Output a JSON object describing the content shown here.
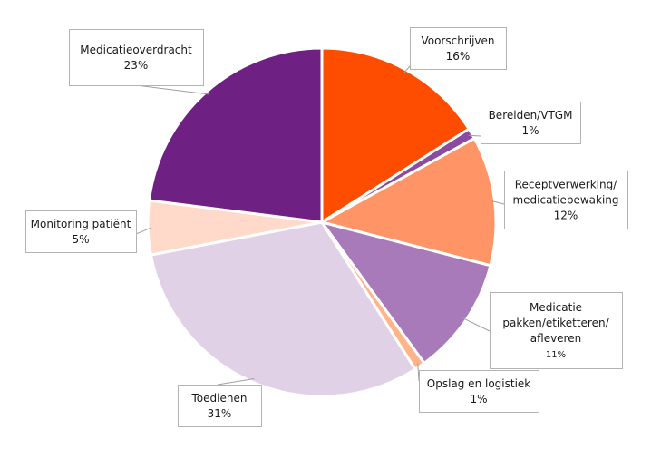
{
  "chart_data": {
    "type": "pie",
    "title": "",
    "start_angle_deg": 0,
    "direction": "clockwise",
    "slices": [
      {
        "label": [
          "Voorschrijven"
        ],
        "percent_label": "16%",
        "value": 16,
        "color": "#FF4D00"
      },
      {
        "label": [
          "Bereiden/VTGM"
        ],
        "percent_label": "1%",
        "value": 1,
        "color": "#8B4BA0"
      },
      {
        "label": [
          "Receptverwerking/",
          "medicatiebewaking"
        ],
        "percent_label": "12%",
        "value": 12,
        "color": "#FF9466"
      },
      {
        "label": [
          "Medicatie",
          "pakken/etiketteren/",
          "afleveren"
        ],
        "percent_label": "11%",
        "value": 11,
        "color": "#A97ABA"
      },
      {
        "label": [
          "Opslag en logistiek"
        ],
        "percent_label": "1%",
        "value": 1,
        "color": "#FFB48A"
      },
      {
        "label": [
          "Toedienen"
        ],
        "percent_label": "31%",
        "value": 31,
        "color": "#E1D1E6"
      },
      {
        "label": [
          "Monitoring patiënt"
        ],
        "percent_label": "5%",
        "value": 5,
        "color": "#FFD9C9"
      },
      {
        "label": [
          "Medicatieoverdracht"
        ],
        "percent_label": "23%",
        "value": 23,
        "color": "#6E2182"
      }
    ]
  }
}
